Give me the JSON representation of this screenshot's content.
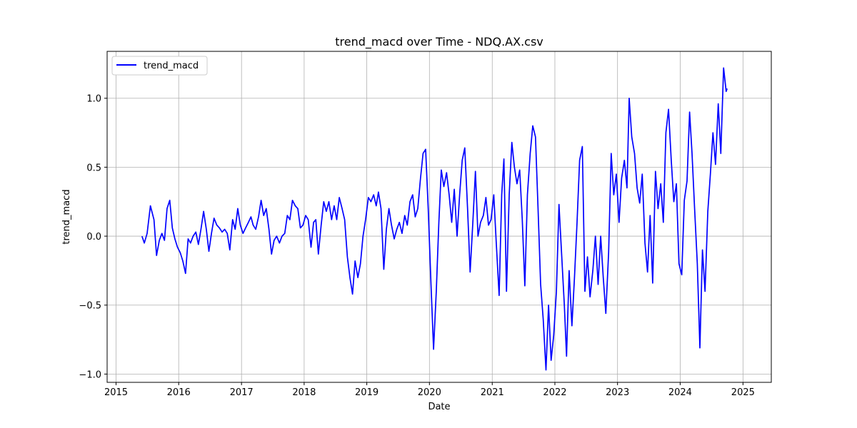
{
  "chart_data": {
    "type": "line",
    "title": "trend_macd over Time - NDQ.AX.csv",
    "xlabel": "Date",
    "ylabel": "trend_macd",
    "grid": true,
    "legend_position": "top-left",
    "x_ticks": [
      "2015",
      "2016",
      "2017",
      "2018",
      "2019",
      "2020",
      "2021",
      "2022",
      "2023",
      "2024",
      "2025"
    ],
    "y_ticks": [
      "−1.0",
      "−0.5",
      "0.0",
      "0.5",
      "1.0"
    ],
    "xlim": [
      "2014-11-10",
      "2025-06-15"
    ],
    "ylim": [
      -1.06,
      1.34
    ],
    "series": [
      {
        "name": "trend_macd",
        "color": "#0000ff",
        "points": [
          [
            "2015-06-01",
            0.0
          ],
          [
            "2015-06-15",
            -0.05
          ],
          [
            "2015-07-01",
            0.02
          ],
          [
            "2015-07-20",
            0.22
          ],
          [
            "2015-08-10",
            0.12
          ],
          [
            "2015-08-25",
            -0.14
          ],
          [
            "2015-09-10",
            -0.03
          ],
          [
            "2015-09-25",
            0.02
          ],
          [
            "2015-10-10",
            -0.03
          ],
          [
            "2015-10-25",
            0.2
          ],
          [
            "2015-11-10",
            0.26
          ],
          [
            "2015-11-25",
            0.06
          ],
          [
            "2015-12-10",
            -0.02
          ],
          [
            "2015-12-25",
            -0.08
          ],
          [
            "2016-01-10",
            -0.12
          ],
          [
            "2016-01-25",
            -0.18
          ],
          [
            "2016-02-10",
            -0.27
          ],
          [
            "2016-02-25",
            -0.02
          ],
          [
            "2016-03-10",
            -0.05
          ],
          [
            "2016-03-25",
            0.0
          ],
          [
            "2016-04-10",
            0.03
          ],
          [
            "2016-04-25",
            -0.06
          ],
          [
            "2016-05-10",
            0.05
          ],
          [
            "2016-05-25",
            0.18
          ],
          [
            "2016-06-10",
            0.05
          ],
          [
            "2016-06-25",
            -0.11
          ],
          [
            "2016-07-10",
            0.02
          ],
          [
            "2016-07-25",
            0.13
          ],
          [
            "2016-08-10",
            0.08
          ],
          [
            "2016-08-25",
            0.06
          ],
          [
            "2016-09-10",
            0.03
          ],
          [
            "2016-09-25",
            0.05
          ],
          [
            "2016-10-10",
            0.02
          ],
          [
            "2016-10-25",
            -0.1
          ],
          [
            "2016-11-10",
            0.12
          ],
          [
            "2016-11-25",
            0.05
          ],
          [
            "2016-12-10",
            0.2
          ],
          [
            "2016-12-25",
            0.08
          ],
          [
            "2017-01-10",
            0.02
          ],
          [
            "2017-01-25",
            0.06
          ],
          [
            "2017-02-10",
            0.1
          ],
          [
            "2017-02-25",
            0.14
          ],
          [
            "2017-03-10",
            0.08
          ],
          [
            "2017-03-25",
            0.05
          ],
          [
            "2017-04-10",
            0.14
          ],
          [
            "2017-04-25",
            0.26
          ],
          [
            "2017-05-10",
            0.15
          ],
          [
            "2017-05-25",
            0.2
          ],
          [
            "2017-06-10",
            0.05
          ],
          [
            "2017-06-25",
            -0.13
          ],
          [
            "2017-07-10",
            -0.03
          ],
          [
            "2017-07-25",
            0.0
          ],
          [
            "2017-08-10",
            -0.05
          ],
          [
            "2017-08-25",
            0.0
          ],
          [
            "2017-09-10",
            0.02
          ],
          [
            "2017-09-25",
            0.15
          ],
          [
            "2017-10-10",
            0.12
          ],
          [
            "2017-10-25",
            0.26
          ],
          [
            "2017-11-10",
            0.22
          ],
          [
            "2017-11-25",
            0.2
          ],
          [
            "2017-12-10",
            0.06
          ],
          [
            "2017-12-25",
            0.08
          ],
          [
            "2018-01-10",
            0.15
          ],
          [
            "2018-01-25",
            0.12
          ],
          [
            "2018-02-10",
            -0.08
          ],
          [
            "2018-02-25",
            0.1
          ],
          [
            "2018-03-10",
            0.12
          ],
          [
            "2018-03-25",
            -0.13
          ],
          [
            "2018-04-10",
            0.08
          ],
          [
            "2018-04-25",
            0.25
          ],
          [
            "2018-05-10",
            0.18
          ],
          [
            "2018-05-25",
            0.25
          ],
          [
            "2018-06-10",
            0.12
          ],
          [
            "2018-06-25",
            0.22
          ],
          [
            "2018-07-10",
            0.12
          ],
          [
            "2018-07-25",
            0.28
          ],
          [
            "2018-08-10",
            0.2
          ],
          [
            "2018-08-25",
            0.12
          ],
          [
            "2018-09-10",
            -0.15
          ],
          [
            "2018-09-25",
            -0.3
          ],
          [
            "2018-10-10",
            -0.42
          ],
          [
            "2018-10-25",
            -0.18
          ],
          [
            "2018-11-10",
            -0.3
          ],
          [
            "2018-11-25",
            -0.2
          ],
          [
            "2018-12-10",
            0.0
          ],
          [
            "2018-12-25",
            0.12
          ],
          [
            "2019-01-10",
            0.28
          ],
          [
            "2019-01-25",
            0.25
          ],
          [
            "2019-02-10",
            0.3
          ],
          [
            "2019-02-25",
            0.22
          ],
          [
            "2019-03-10",
            0.32
          ],
          [
            "2019-03-25",
            0.2
          ],
          [
            "2019-04-10",
            -0.24
          ],
          [
            "2019-04-25",
            0.05
          ],
          [
            "2019-05-10",
            0.2
          ],
          [
            "2019-05-25",
            0.08
          ],
          [
            "2019-06-10",
            -0.02
          ],
          [
            "2019-06-25",
            0.05
          ],
          [
            "2019-07-10",
            0.1
          ],
          [
            "2019-07-25",
            0.02
          ],
          [
            "2019-08-10",
            0.15
          ],
          [
            "2019-08-25",
            0.08
          ],
          [
            "2019-09-10",
            0.25
          ],
          [
            "2019-09-25",
            0.3
          ],
          [
            "2019-10-10",
            0.14
          ],
          [
            "2019-10-25",
            0.2
          ],
          [
            "2019-11-10",
            0.42
          ],
          [
            "2019-11-25",
            0.6
          ],
          [
            "2019-12-10",
            0.63
          ],
          [
            "2019-12-25",
            0.2
          ],
          [
            "2020-01-10",
            -0.35
          ],
          [
            "2020-01-25",
            -0.82
          ],
          [
            "2020-02-10",
            -0.4
          ],
          [
            "2020-02-25",
            0.1
          ],
          [
            "2020-03-10",
            0.48
          ],
          [
            "2020-03-25",
            0.36
          ],
          [
            "2020-04-10",
            0.46
          ],
          [
            "2020-04-25",
            0.3
          ],
          [
            "2020-05-10",
            0.1
          ],
          [
            "2020-05-25",
            0.34
          ],
          [
            "2020-06-10",
            0.0
          ],
          [
            "2020-06-25",
            0.3
          ],
          [
            "2020-07-10",
            0.55
          ],
          [
            "2020-07-25",
            0.64
          ],
          [
            "2020-08-10",
            0.2
          ],
          [
            "2020-08-25",
            -0.26
          ],
          [
            "2020-09-10",
            0.1
          ],
          [
            "2020-09-25",
            0.47
          ],
          [
            "2020-10-10",
            0.0
          ],
          [
            "2020-10-25",
            0.1
          ],
          [
            "2020-11-10",
            0.15
          ],
          [
            "2020-11-25",
            0.28
          ],
          [
            "2020-12-10",
            0.08
          ],
          [
            "2020-12-25",
            0.12
          ],
          [
            "2021-01-10",
            0.3
          ],
          [
            "2021-01-25",
            -0.06
          ],
          [
            "2021-02-10",
            -0.43
          ],
          [
            "2021-02-25",
            0.3
          ],
          [
            "2021-03-10",
            0.56
          ],
          [
            "2021-03-25",
            -0.4
          ],
          [
            "2021-04-10",
            0.3
          ],
          [
            "2021-04-25",
            0.68
          ],
          [
            "2021-05-10",
            0.5
          ],
          [
            "2021-05-25",
            0.38
          ],
          [
            "2021-06-10",
            0.48
          ],
          [
            "2021-06-25",
            0.12
          ],
          [
            "2021-07-10",
            -0.36
          ],
          [
            "2021-07-25",
            0.3
          ],
          [
            "2021-08-10",
            0.6
          ],
          [
            "2021-08-25",
            0.8
          ],
          [
            "2021-09-10",
            0.72
          ],
          [
            "2021-09-25",
            0.2
          ],
          [
            "2021-10-10",
            -0.35
          ],
          [
            "2021-10-25",
            -0.6
          ],
          [
            "2021-11-10",
            -0.97
          ],
          [
            "2021-11-25",
            -0.5
          ],
          [
            "2021-12-10",
            -0.9
          ],
          [
            "2021-12-25",
            -0.72
          ],
          [
            "2022-01-10",
            -0.4
          ],
          [
            "2022-01-25",
            0.23
          ],
          [
            "2022-02-10",
            -0.15
          ],
          [
            "2022-02-25",
            -0.5
          ],
          [
            "2022-03-10",
            -0.87
          ],
          [
            "2022-03-25",
            -0.25
          ],
          [
            "2022-04-10",
            -0.65
          ],
          [
            "2022-04-25",
            -0.3
          ],
          [
            "2022-05-10",
            0.1
          ],
          [
            "2022-05-25",
            0.55
          ],
          [
            "2022-06-10",
            0.65
          ],
          [
            "2022-06-25",
            -0.4
          ],
          [
            "2022-07-10",
            -0.15
          ],
          [
            "2022-07-25",
            -0.44
          ],
          [
            "2022-08-10",
            -0.25
          ],
          [
            "2022-08-25",
            0.0
          ],
          [
            "2022-09-10",
            -0.35
          ],
          [
            "2022-09-25",
            0.0
          ],
          [
            "2022-10-10",
            -0.3
          ],
          [
            "2022-10-25",
            -0.56
          ],
          [
            "2022-11-10",
            -0.12
          ],
          [
            "2022-11-25",
            0.6
          ],
          [
            "2022-12-10",
            0.3
          ],
          [
            "2022-12-25",
            0.45
          ],
          [
            "2023-01-10",
            0.1
          ],
          [
            "2023-01-25",
            0.42
          ],
          [
            "2023-02-10",
            0.55
          ],
          [
            "2023-02-25",
            0.35
          ],
          [
            "2023-03-10",
            1.0
          ],
          [
            "2023-03-25",
            0.72
          ],
          [
            "2023-04-10",
            0.6
          ],
          [
            "2023-04-25",
            0.35
          ],
          [
            "2023-05-10",
            0.24
          ],
          [
            "2023-05-25",
            0.45
          ],
          [
            "2023-06-10",
            -0.05
          ],
          [
            "2023-06-25",
            -0.26
          ],
          [
            "2023-07-10",
            0.15
          ],
          [
            "2023-07-25",
            -0.34
          ],
          [
            "2023-08-10",
            0.47
          ],
          [
            "2023-08-25",
            0.2
          ],
          [
            "2023-09-10",
            0.38
          ],
          [
            "2023-09-25",
            0.1
          ],
          [
            "2023-10-10",
            0.75
          ],
          [
            "2023-10-25",
            0.92
          ],
          [
            "2023-11-10",
            0.55
          ],
          [
            "2023-11-25",
            0.25
          ],
          [
            "2023-12-10",
            0.38
          ],
          [
            "2023-12-25",
            -0.2
          ],
          [
            "2024-01-10",
            -0.28
          ],
          [
            "2024-01-25",
            0.26
          ],
          [
            "2024-02-10",
            0.4
          ],
          [
            "2024-02-25",
            0.9
          ],
          [
            "2024-03-10",
            0.6
          ],
          [
            "2024-03-25",
            0.2
          ],
          [
            "2024-04-10",
            -0.2
          ],
          [
            "2024-04-25",
            -0.81
          ],
          [
            "2024-05-10",
            -0.1
          ],
          [
            "2024-05-25",
            -0.4
          ],
          [
            "2024-06-10",
            0.18
          ],
          [
            "2024-06-25",
            0.45
          ],
          [
            "2024-07-10",
            0.75
          ],
          [
            "2024-07-25",
            0.52
          ],
          [
            "2024-08-10",
            0.96
          ],
          [
            "2024-08-25",
            0.6
          ],
          [
            "2024-09-10",
            1.22
          ],
          [
            "2024-09-25",
            1.05
          ],
          [
            "2024-10-01",
            1.07
          ]
        ]
      }
    ]
  }
}
